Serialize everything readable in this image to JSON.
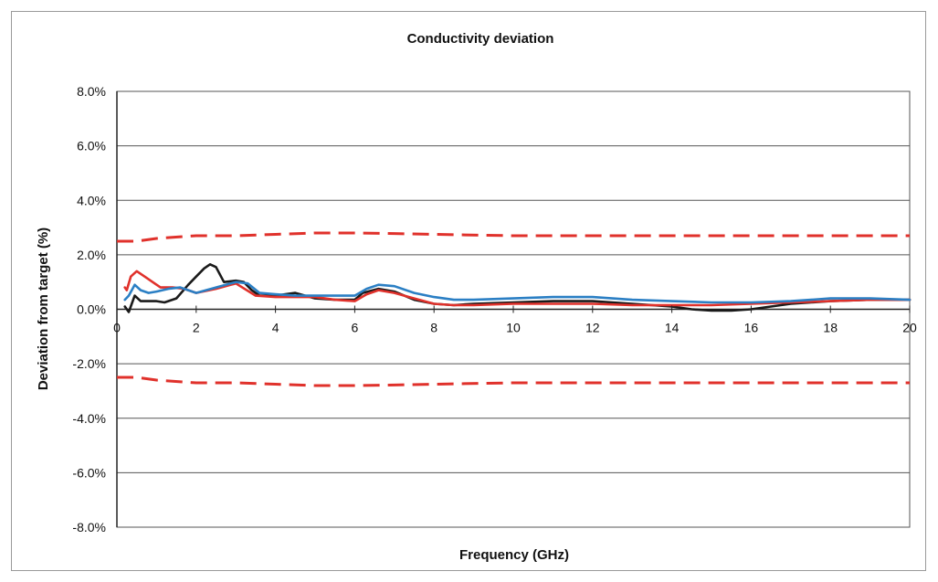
{
  "chart_data": {
    "type": "line",
    "title": "Conductivity deviation",
    "xlabel": "Frequency (GHz)",
    "ylabel": "Deviation from target (%)",
    "xlim": [
      0,
      20
    ],
    "ylim": [
      -8,
      8
    ],
    "x_ticks": [
      0,
      2,
      4,
      6,
      8,
      10,
      12,
      14,
      16,
      18,
      20
    ],
    "x_tick_labels": [
      "0",
      "2",
      "4",
      "6",
      "8",
      "10",
      "12",
      "14",
      "16",
      "18",
      "20"
    ],
    "y_ticks": [
      8,
      6,
      4,
      2,
      0,
      -2,
      -4,
      -6,
      -8
    ],
    "y_tick_labels": [
      "8.0%",
      "6.0%",
      "4.0%",
      "2.0%",
      "0.0%",
      "-2.0%",
      "-4.0%",
      "-6.0%",
      "-8.0%"
    ],
    "grid": "horizontal",
    "legend": "none",
    "series": [
      {
        "color": "#1a1a1a",
        "style": "solid",
        "x": [
          0.2,
          0.3,
          0.45,
          0.6,
          0.8,
          1.0,
          1.2,
          1.5,
          1.8,
          2.0,
          2.2,
          2.35,
          2.5,
          2.7,
          3.0,
          3.2,
          3.4,
          3.6,
          4.0,
          4.5,
          5.0,
          5.5,
          6.0,
          6.2,
          6.6,
          7.0,
          7.5,
          8.0,
          8.5,
          9.0,
          10.0,
          11.0,
          12.0,
          13.0,
          14.0,
          14.5,
          15.0,
          15.5,
          16.0,
          17.0,
          18.0,
          19.0,
          20.0
        ],
        "y": [
          0.1,
          -0.1,
          0.5,
          0.3,
          0.3,
          0.3,
          0.25,
          0.4,
          0.9,
          1.2,
          1.5,
          1.65,
          1.55,
          1.0,
          1.05,
          1.0,
          0.7,
          0.5,
          0.5,
          0.6,
          0.4,
          0.35,
          0.35,
          0.6,
          0.75,
          0.65,
          0.35,
          0.2,
          0.15,
          0.2,
          0.25,
          0.3,
          0.3,
          0.2,
          0.1,
          0.0,
          -0.05,
          -0.05,
          0.0,
          0.2,
          0.3,
          0.35,
          0.35
        ]
      },
      {
        "color": "#e0312b",
        "style": "solid",
        "x": [
          0.2,
          0.25,
          0.35,
          0.5,
          0.7,
          0.9,
          1.1,
          1.4,
          1.7,
          2.0,
          2.5,
          3.0,
          3.5,
          4.0,
          4.5,
          5.0,
          5.5,
          6.0,
          6.3,
          6.6,
          7.0,
          7.5,
          8.0,
          8.5,
          9.0,
          10.0,
          11.0,
          12.0,
          13.0,
          14.0,
          15.0,
          16.0,
          17.0,
          18.0,
          19.0,
          20.0
        ],
        "y": [
          0.8,
          0.7,
          1.2,
          1.4,
          1.2,
          1.0,
          0.8,
          0.8,
          0.75,
          0.6,
          0.75,
          0.95,
          0.5,
          0.45,
          0.45,
          0.45,
          0.35,
          0.3,
          0.55,
          0.7,
          0.6,
          0.4,
          0.2,
          0.15,
          0.15,
          0.2,
          0.2,
          0.2,
          0.15,
          0.15,
          0.15,
          0.2,
          0.25,
          0.3,
          0.35,
          0.35
        ]
      },
      {
        "color": "#2b7fc4",
        "style": "solid",
        "x": [
          0.2,
          0.3,
          0.45,
          0.6,
          0.8,
          1.0,
          1.3,
          1.6,
          2.0,
          2.5,
          3.0,
          3.3,
          3.6,
          4.0,
          4.5,
          5.0,
          5.5,
          6.0,
          6.3,
          6.6,
          7.0,
          7.5,
          8.0,
          8.5,
          9.0,
          10.0,
          11.0,
          12.0,
          13.0,
          14.0,
          15.0,
          16.0,
          17.0,
          18.0,
          19.0,
          20.0
        ],
        "y": [
          0.35,
          0.5,
          0.9,
          0.7,
          0.6,
          0.65,
          0.75,
          0.8,
          0.6,
          0.8,
          1.0,
          0.95,
          0.6,
          0.55,
          0.5,
          0.5,
          0.5,
          0.5,
          0.75,
          0.9,
          0.85,
          0.6,
          0.45,
          0.35,
          0.35,
          0.4,
          0.45,
          0.45,
          0.35,
          0.3,
          0.25,
          0.25,
          0.3,
          0.4,
          0.4,
          0.35
        ]
      },
      {
        "color": "#e0312b",
        "style": "dashed",
        "x": [
          0.0,
          0.5,
          1.0,
          2.0,
          3.0,
          4.0,
          5.0,
          6.0,
          7.0,
          8.0,
          10.0,
          12.0,
          14.0,
          16.0,
          18.0,
          20.0
        ],
        "y": [
          2.5,
          2.5,
          2.6,
          2.7,
          2.7,
          2.75,
          2.8,
          2.8,
          2.78,
          2.75,
          2.7,
          2.7,
          2.7,
          2.7,
          2.7,
          2.7
        ]
      },
      {
        "color": "#e0312b",
        "style": "dashed",
        "x": [
          0.0,
          0.5,
          1.0,
          2.0,
          3.0,
          4.0,
          5.0,
          6.0,
          7.0,
          8.0,
          10.0,
          12.0,
          14.0,
          16.0,
          18.0,
          20.0
        ],
        "y": [
          -2.5,
          -2.5,
          -2.6,
          -2.7,
          -2.7,
          -2.75,
          -2.8,
          -2.8,
          -2.78,
          -2.75,
          -2.7,
          -2.7,
          -2.7,
          -2.7,
          -2.7,
          -2.7
        ]
      }
    ]
  }
}
